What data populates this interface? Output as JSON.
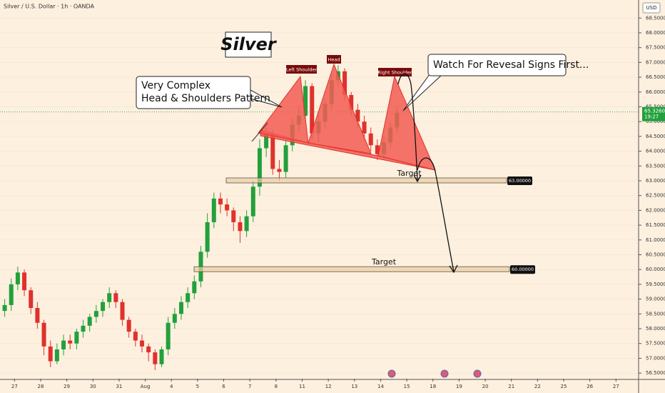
{
  "chart_data": {
    "type": "candlestick",
    "title": "Silver / U.S. Dollar · 1h · OANDA",
    "currency": "USD",
    "categories": [
      null,
      null,
      "27",
      null,
      null,
      null,
      "28",
      null,
      null,
      null,
      "29",
      null,
      null,
      null,
      "30",
      null,
      null,
      null,
      "31",
      null,
      null,
      null,
      "Aug",
      null,
      null,
      null,
      "4",
      null,
      null,
      null,
      "5",
      null,
      null,
      null,
      "6",
      null,
      null,
      null,
      "7",
      null,
      null,
      null,
      "8",
      null,
      null,
      null,
      "11",
      null,
      null,
      null,
      "12",
      null,
      null,
      null,
      "13",
      null,
      null,
      null,
      "14",
      null,
      null,
      null,
      "15",
      null,
      null,
      null,
      "18",
      null,
      null,
      null,
      "19",
      null,
      null,
      null,
      "20",
      null,
      null,
      null,
      "21",
      null,
      null,
      null,
      "22",
      null,
      null,
      null,
      "25",
      null,
      null,
      null,
      "26",
      null,
      null,
      null,
      "27",
      null,
      null,
      null
    ],
    "open": [
      58.6,
      58.8,
      59.5,
      59.9,
      59.3,
      58.7,
      58.2,
      57.4,
      56.9,
      57.3,
      57.6,
      57.5,
      57.9,
      58.1,
      58.4,
      58.6,
      58.9,
      59.2,
      58.9,
      58.3,
      57.9,
      57.6,
      57.4,
      57.2,
      56.8,
      57.3,
      58.2,
      58.5,
      58.9,
      59.2,
      59.6,
      60.6,
      61.6,
      62.4,
      62.2,
      62.0,
      61.6,
      61.3,
      61.8,
      62.8,
      64.1,
      64.6,
      63.4,
      63.3,
      64.2,
      64.9,
      65.2,
      66.2,
      64.6,
      65.0,
      65.6,
      66.4,
      66.7,
      65.9,
      65.4,
      65.0,
      64.6,
      64.2,
      63.9,
      64.3,
      64.8,
      null,
      null,
      null,
      null,
      null,
      null,
      null,
      null,
      null,
      null,
      null,
      null,
      null,
      null,
      null,
      null,
      null,
      null,
      null,
      null,
      null,
      null,
      null,
      null,
      null,
      null,
      null,
      null,
      null,
      null,
      null,
      null,
      null,
      null,
      null,
      null,
      null
    ],
    "high": [
      59.0,
      59.7,
      60.1,
      60.0,
      59.4,
      58.9,
      58.3,
      57.6,
      57.5,
      57.8,
      57.8,
      58.0,
      58.3,
      58.5,
      58.8,
      59.0,
      59.4,
      59.3,
      59.0,
      58.4,
      58.0,
      57.8,
      57.5,
      57.3,
      57.4,
      58.4,
      58.7,
      59.1,
      59.4,
      59.8,
      60.8,
      61.9,
      62.6,
      62.6,
      62.4,
      62.1,
      61.8,
      62.0,
      63.0,
      64.4,
      64.8,
      64.7,
      63.7,
      64.4,
      65.1,
      65.5,
      66.4,
      66.3,
      65.3,
      65.8,
      66.6,
      66.9,
      66.8,
      66.0,
      65.6,
      65.2,
      64.8,
      64.4,
      64.5,
      65.0,
      65.5,
      null,
      null,
      null,
      null,
      null,
      null,
      null,
      null,
      null,
      null,
      null,
      null,
      null,
      null,
      null,
      null,
      null,
      null,
      null,
      null,
      null,
      null,
      null,
      null,
      null,
      null,
      null,
      null,
      null,
      null,
      null,
      null,
      null,
      null,
      null,
      null,
      null
    ],
    "low": [
      58.4,
      58.6,
      59.3,
      59.1,
      58.5,
      58.0,
      57.1,
      56.7,
      56.8,
      57.1,
      57.3,
      57.3,
      57.7,
      57.9,
      58.2,
      58.4,
      58.7,
      58.7,
      58.1,
      57.7,
      57.4,
      57.2,
      56.9,
      56.6,
      56.7,
      57.1,
      58.0,
      58.3,
      58.7,
      59.0,
      59.4,
      60.4,
      61.4,
      61.9,
      61.8,
      61.3,
      60.9,
      61.1,
      61.6,
      62.5,
      63.8,
      63.2,
      63.0,
      63.1,
      64.0,
      64.7,
      65.0,
      64.4,
      64.3,
      64.8,
      65.4,
      66.2,
      65.7,
      65.2,
      64.8,
      64.4,
      64.0,
      63.7,
      63.7,
      64.1,
      64.6,
      null,
      null,
      null,
      null,
      null,
      null,
      null,
      null,
      null,
      null,
      null,
      null,
      null,
      null,
      null,
      null,
      null,
      null,
      null,
      null,
      null,
      null,
      null,
      null,
      null,
      null,
      null,
      null,
      null,
      null,
      null,
      null,
      null,
      null,
      null,
      null,
      null
    ],
    "close": [
      58.8,
      59.5,
      59.9,
      59.3,
      58.7,
      58.2,
      57.4,
      56.9,
      57.3,
      57.6,
      57.5,
      57.9,
      58.1,
      58.4,
      58.6,
      58.9,
      59.2,
      58.9,
      58.3,
      57.9,
      57.6,
      57.4,
      57.2,
      56.8,
      57.3,
      58.2,
      58.5,
      58.9,
      59.2,
      59.6,
      60.6,
      61.6,
      62.4,
      62.2,
      62.0,
      61.6,
      61.3,
      61.8,
      62.8,
      64.1,
      64.6,
      63.4,
      63.3,
      64.2,
      64.9,
      65.2,
      66.2,
      64.6,
      65.0,
      65.6,
      66.4,
      66.7,
      65.9,
      65.4,
      65.0,
      64.6,
      64.2,
      63.9,
      64.3,
      64.8,
      65.3,
      null,
      null,
      null,
      null,
      null,
      null,
      null,
      null,
      null,
      null,
      null,
      null,
      null,
      null,
      null,
      null,
      null,
      null,
      null,
      null,
      null,
      null,
      null,
      null,
      null,
      null,
      null,
      null,
      null,
      null,
      null,
      null,
      null,
      null,
      null,
      null,
      null
    ],
    "up_color": "#22a03c",
    "down_color": "#e0312d",
    "ylim": [
      56.31,
      69.11
    ],
    "yticks": [
      {
        "value": 56.5,
        "label": "56.50000"
      },
      {
        "value": 57,
        "label": "57.00000"
      },
      {
        "value": 57.5,
        "label": "57.50000"
      },
      {
        "value": 58,
        "label": "58.00000"
      },
      {
        "value": 58.5,
        "label": "58.50000"
      },
      {
        "value": 59,
        "label": "59.00000"
      },
      {
        "value": 59.5,
        "label": "59.50000"
      },
      {
        "value": 60,
        "label": "60.00000"
      },
      {
        "value": 60.5,
        "label": "60.50000"
      },
      {
        "value": 61,
        "label": "61.00000"
      },
      {
        "value": 61.5,
        "label": "61.50000"
      },
      {
        "value": 62,
        "label": "62.00000"
      },
      {
        "value": 62.5,
        "label": "62.50000"
      },
      {
        "value": 63,
        "label": "63.00000"
      },
      {
        "value": 63.5,
        "label": "63.50000"
      },
      {
        "value": 64,
        "label": "64.00000"
      },
      {
        "value": 64.5,
        "label": "64.50000"
      },
      {
        "value": 65,
        "label": "65.00000"
      },
      {
        "value": 65.5,
        "label": "65.50000"
      },
      {
        "value": 66,
        "label": "66.00000"
      },
      {
        "value": 66.5,
        "label": "66.50000"
      },
      {
        "value": 67,
        "label": "67.00000"
      },
      {
        "value": 67.5,
        "label": "67.50000"
      },
      {
        "value": 68,
        "label": "68.00000"
      },
      {
        "value": 68.5,
        "label": "68.50000"
      }
    ],
    "last_price": {
      "value": 65.326,
      "label": "65.32600"
    },
    "countdown": "19:27",
    "heading": "Silver",
    "pattern_note": [
      "Very Complex",
      "Head & Shoulders Pattern"
    ],
    "callout": "Watch For Revesal Signs First...",
    "pattern_labels": [
      "Left Shoulder",
      "Head",
      "Right Shoulder"
    ],
    "targets": [
      {
        "name": "Target",
        "value": 63,
        "label": "63.00000"
      },
      {
        "name": "Target",
        "value": 60,
        "label": "60.00000"
      }
    ]
  }
}
